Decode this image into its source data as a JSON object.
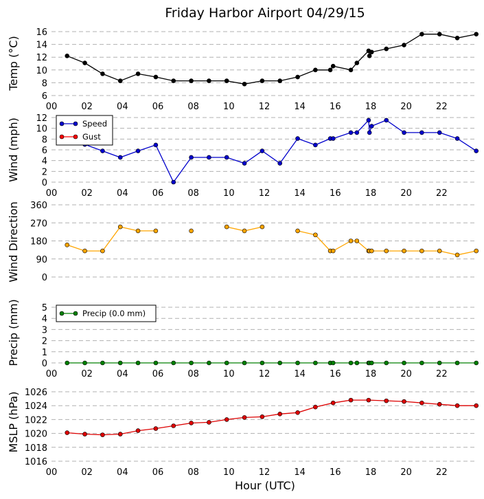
{
  "chart_data": {
    "title": "Friday Harbor Airport 04/29/15",
    "xlabel": "Hour (UTC)",
    "x_tick_labels": [
      "00",
      "02",
      "04",
      "06",
      "08",
      "10",
      "12",
      "14",
      "16",
      "18",
      "20",
      "22"
    ],
    "xlim": [
      0,
      24
    ],
    "panels": [
      {
        "type": "line",
        "ylabel": "Temp ($^\\circ$C)",
        "ylabel_display": "Temp (°C)",
        "ylim": [
          6,
          16
        ],
        "yticks": [
          6,
          8,
          10,
          12,
          14,
          16
        ],
        "series": [
          {
            "color": "#000000",
            "x": [
              0.88,
              1.88,
              2.88,
              3.88,
              4.88,
              5.88,
              6.88,
              7.88,
              8.88,
              9.88,
              10.88,
              11.88,
              12.88,
              13.88,
              14.88,
              15.72,
              15.88,
              16.88,
              17.22,
              17.88,
              17.93,
              18.05,
              18.88,
              19.88,
              20.88,
              21.88,
              22.88,
              23.95
            ],
            "y": [
              12.2,
              11.1,
              9.4,
              8.3,
              9.4,
              8.9,
              8.3,
              8.3,
              8.3,
              8.3,
              7.8,
              8.3,
              8.3,
              8.9,
              10.0,
              10.0,
              10.6,
              10.0,
              11.1,
              13.0,
              12.2,
              12.8,
              13.3,
              13.9,
              15.6,
              15.6,
              15.0,
              15.6
            ]
          }
        ]
      },
      {
        "type": "line",
        "ylabel": "Wind (mph)",
        "ylim": [
          0,
          12
        ],
        "yticks": [
          0,
          2,
          4,
          6,
          8,
          10,
          12
        ],
        "legend": {
          "position": "upper-left"
        },
        "series": [
          {
            "name": "Speed",
            "color": "#0000cc",
            "x": [
              0.88,
              1.88,
              2.88,
              3.88,
              4.88,
              5.88,
              6.88,
              7.88,
              8.88,
              9.88,
              10.88,
              11.88,
              12.88,
              13.88,
              14.88,
              15.72,
              15.88,
              16.88,
              17.22,
              17.88,
              17.93,
              18.05,
              18.88,
              19.88,
              20.88,
              21.88,
              22.88,
              23.95
            ],
            "y": [
              8,
              7,
              5.8,
              4.6,
              5.8,
              6.9,
              0,
              4.6,
              4.6,
              4.6,
              3.5,
              5.8,
              3.5,
              8.1,
              6.9,
              8.1,
              8.1,
              9.2,
              9.2,
              11.5,
              9.2,
              10.4,
              11.5,
              9.2,
              9.2,
              9.2,
              8.1,
              5.8
            ]
          },
          {
            "name": "Gust",
            "color": "#ff0000",
            "x": [],
            "y": []
          }
        ]
      },
      {
        "type": "line",
        "ylabel": "Wind Direction",
        "ylim": [
          0,
          360
        ],
        "yticks": [
          0,
          90,
          180,
          270,
          360
        ],
        "series": [
          {
            "color": "#ffa500",
            "x": [
              0.88,
              1.88,
              2.88,
              3.88,
              4.88,
              5.88,
              6.88,
              7.88,
              8.88,
              9.88,
              10.88,
              11.88,
              12.88,
              13.88,
              14.88,
              15.72,
              15.88,
              16.88,
              17.22,
              17.88,
              17.93,
              18.05,
              18.88,
              19.88,
              20.88,
              21.88,
              22.88,
              23.95
            ],
            "y": [
              160,
              130,
              130,
              250,
              230,
              230,
              null,
              230,
              null,
              250,
              230,
              250,
              null,
              230,
              210,
              130,
              130,
              180,
              180,
              130,
              130,
              130,
              130,
              130,
              130,
              130,
              110,
              130
            ]
          }
        ]
      },
      {
        "type": "line",
        "ylabel": "Precip (mm)",
        "ylim": [
          0,
          5
        ],
        "yticks": [
          0,
          1,
          2,
          3,
          4,
          5
        ],
        "legend": {
          "position": "upper-left"
        },
        "series": [
          {
            "name": "Precip (0.0 mm)",
            "color": "#008000",
            "x": [
              0.88,
              1.88,
              2.88,
              3.88,
              4.88,
              5.88,
              6.88,
              7.88,
              8.88,
              9.88,
              10.88,
              11.88,
              12.88,
              13.88,
              14.88,
              15.72,
              15.88,
              16.88,
              17.22,
              17.88,
              17.93,
              18.05,
              18.88,
              19.88,
              20.88,
              21.88,
              22.88,
              23.95
            ],
            "y": [
              0,
              0,
              0,
              0,
              0,
              0,
              0,
              0,
              0,
              0,
              0,
              0,
              0,
              0,
              0,
              0,
              0,
              0,
              0,
              0,
              0,
              0,
              0,
              0,
              0,
              0,
              0,
              0
            ]
          }
        ]
      },
      {
        "type": "line",
        "ylabel": "MSLP (hPa)",
        "ylim": [
          1016,
          1026
        ],
        "yticks": [
          1016,
          1018,
          1020,
          1022,
          1024,
          1026
        ],
        "series": [
          {
            "color": "#dd0000",
            "x": [
              0.88,
              1.88,
              2.88,
              3.88,
              4.88,
              5.88,
              6.88,
              7.88,
              8.88,
              9.88,
              10.88,
              11.88,
              12.88,
              13.88,
              14.88,
              15.88,
              16.88,
              17.88,
              18.88,
              19.88,
              20.88,
              21.88,
              22.88,
              23.95
            ],
            "y": [
              1020.1,
              1019.9,
              1019.8,
              1019.9,
              1020.4,
              1020.7,
              1021.1,
              1021.5,
              1021.6,
              1022.0,
              1022.3,
              1022.4,
              1022.8,
              1023.0,
              1023.8,
              1024.4,
              1024.8,
              1024.8,
              1024.7,
              1024.6,
              1024.4,
              1024.2,
              1024.0,
              1024.0
            ]
          }
        ]
      }
    ]
  }
}
